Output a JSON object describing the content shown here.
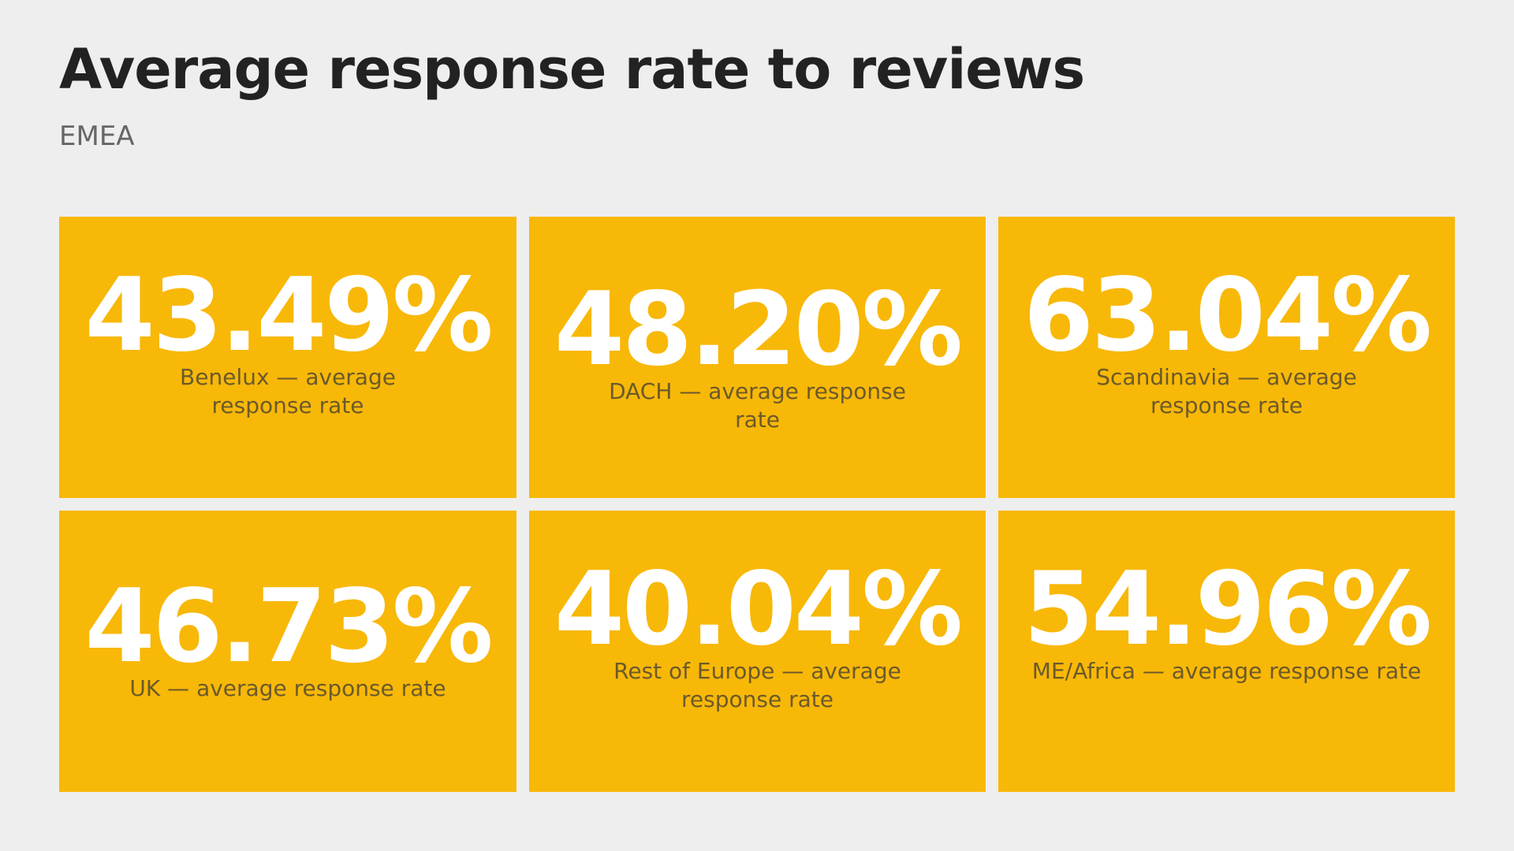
{
  "header": {
    "title": "Average response rate to reviews",
    "subtitle": "EMEA"
  },
  "cards": [
    {
      "value": "43.49%",
      "label": "Benelux — average response rate"
    },
    {
      "value": "48.20%",
      "label": "DACH — average response rate"
    },
    {
      "value": "63.04%",
      "label": "Scandinavia — average response rate"
    },
    {
      "value": "46.73%",
      "label": "UK — average response rate"
    },
    {
      "value": "40.04%",
      "label": "Rest of Europe — average response rate"
    },
    {
      "value": "54.96%",
      "label": "ME/Africa — average response rate"
    }
  ],
  "colors": {
    "background": "#eeeeee",
    "card": "#f8b808",
    "value_text": "#ffffff",
    "label_text": "#6b5a2a",
    "title_text": "#222222",
    "subtitle_text": "#666666"
  }
}
